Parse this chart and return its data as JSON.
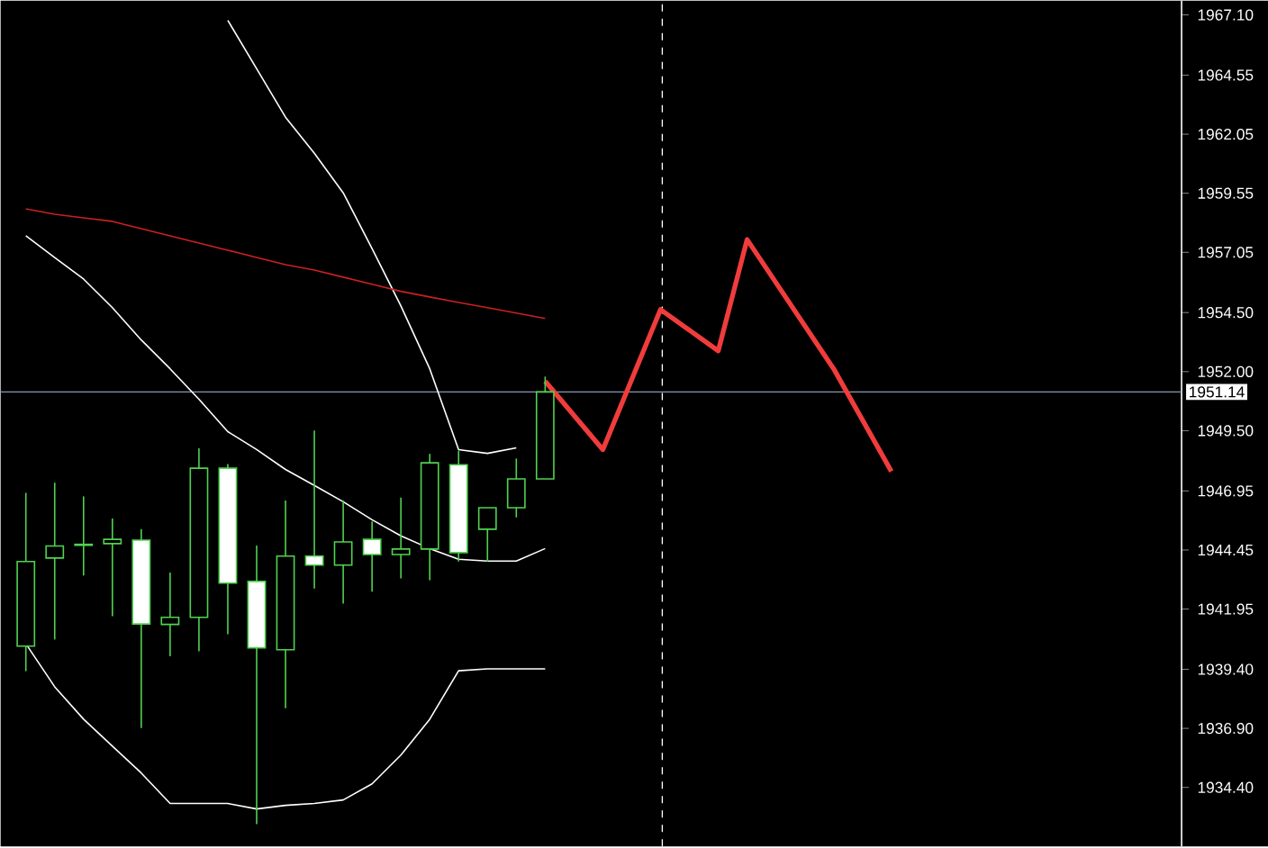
{
  "chart_data": {
    "type": "candlestick",
    "categories": [
      null,
      null,
      null,
      null,
      null,
      null,
      null,
      null,
      null,
      null,
      null,
      null,
      null,
      null,
      null,
      null,
      null,
      null,
      null,
      null,
      null,
      null,
      null,
      null,
      null,
      null,
      null,
      null,
      null,
      null,
      null,
      null,
      null,
      null,
      null,
      null,
      null,
      null,
      null,
      null,
      null
    ],
    "ohlc": [
      [
        1940.38,
        1946.87,
        1939.32,
        1943.96
      ],
      [
        1944.11,
        1947.3,
        1940.66,
        1944.62
      ],
      [
        1944.65,
        1946.72,
        1943.37,
        1944.69
      ],
      [
        1944.72,
        1945.78,
        1941.65,
        1944.9
      ],
      [
        1944.87,
        1945.33,
        1936.91,
        1941.32
      ],
      [
        1941.3,
        1943.5,
        1939.95,
        1941.6
      ],
      [
        1941.6,
        1948.75,
        1940.16,
        1947.91
      ],
      [
        1947.91,
        1948.09,
        1940.89,
        1943.05
      ],
      [
        1943.12,
        1944.64,
        1932.85,
        1940.31
      ],
      [
        1940.23,
        1946.54,
        1937.75,
        1944.19
      ],
      [
        1944.19,
        1949.51,
        1942.82,
        1943.81
      ],
      [
        1943.81,
        1946.54,
        1942.18,
        1944.79
      ],
      [
        1944.9,
        1945.66,
        1942.69,
        1944.26
      ],
      [
        1944.26,
        1946.67,
        1943.25,
        1944.49
      ],
      [
        1944.49,
        1948.52,
        1943.17,
        1948.14
      ],
      [
        1948.06,
        1948.65,
        1943.96,
        1944.34
      ],
      [
        1945.33,
        1946.24,
        1943.96,
        1946.24
      ],
      [
        1946.24,
        1948.32,
        1945.83,
        1947.46
      ],
      [
        1947.46,
        1951.79,
        1947.46,
        1951.14
      ],
      null,
      null,
      null,
      null,
      null,
      null,
      null,
      null,
      null,
      null,
      null,
      null,
      null,
      null,
      null,
      null,
      null,
      null,
      null,
      null,
      null,
      null
    ],
    "series": [
      {
        "type": "line",
        "color": "#ffffff",
        "values": [
          null,
          null,
          null,
          null,
          null,
          null,
          null,
          1966.87,
          1964.82,
          1962.77,
          1961.24,
          1959.57,
          1957.21,
          1954.78,
          1952.12,
          1948.7,
          1948.54,
          1948.77,
          null,
          null,
          null,
          null,
          null,
          null,
          null,
          null,
          null,
          null,
          null,
          null,
          null,
          null,
          null,
          null,
          null,
          null,
          null,
          null,
          null,
          null,
          null
        ]
      },
      {
        "type": "line",
        "color": "#ffffff",
        "values": [
          1957.75,
          1956.83,
          1955.92,
          1954.71,
          1953.34,
          1952.12,
          1950.83,
          1949.46,
          1948.7,
          1947.86,
          1947.18,
          1946.49,
          1945.73,
          1945.05,
          1944.51,
          1944.06,
          1943.98,
          1943.98,
          1944.51,
          null,
          null,
          null,
          null,
          null,
          null,
          null,
          null,
          null,
          null,
          null,
          null,
          null,
          null,
          null,
          null,
          null,
          null,
          null,
          null,
          null,
          null
        ]
      },
      {
        "type": "line",
        "color": "#ffffff",
        "values": [
          1940.48,
          1938.66,
          1937.29,
          1936.15,
          1935.01,
          1933.72,
          1933.72,
          1933.72,
          1933.49,
          1933.64,
          1933.72,
          1933.87,
          1934.55,
          1935.77,
          1937.29,
          1939.34,
          1939.42,
          1939.42,
          1939.42,
          null,
          null,
          null,
          null,
          null,
          null,
          null,
          null,
          null,
          null,
          null,
          null,
          null,
          null,
          null,
          null,
          null,
          null,
          null,
          null,
          null,
          null
        ]
      },
      {
        "type": "line",
        "color": "#cc2020",
        "values": [
          1958.89,
          1958.66,
          1958.51,
          1958.36,
          1958.05,
          1957.75,
          1957.44,
          1957.14,
          1956.83,
          1956.53,
          1956.3,
          1956.0,
          1955.7,
          1955.4,
          1955.16,
          1954.93,
          1954.71,
          1954.48,
          1954.25,
          null,
          null,
          null,
          null,
          null,
          null,
          null,
          null,
          null,
          null,
          null,
          null,
          null,
          null,
          null,
          null,
          null,
          null,
          null,
          null,
          null,
          null
        ]
      },
      {
        "type": "line",
        "color": "#f03c3c",
        "values": [
          null,
          null,
          null,
          null,
          null,
          null,
          null,
          null,
          null,
          null,
          null,
          null,
          null,
          null,
          null,
          null,
          null,
          null,
          1951.59,
          null,
          1948.7,
          null,
          1954.63,
          null,
          1952.88,
          1957.59,
          null,
          null,
          1952.12,
          null,
          1947.78,
          null,
          null,
          null,
          null,
          null,
          null,
          null,
          null,
          null,
          null
        ]
      }
    ],
    "ylim": [
      1931.9,
      1967.7
    ],
    "yticks": [
      {
        "value": 1934.4,
        "label": "1934.40"
      },
      {
        "value": 1936.9,
        "label": "1936.90"
      },
      {
        "value": 1939.4,
        "label": "1939.40"
      },
      {
        "value": 1941.95,
        "label": "1941.95"
      },
      {
        "value": 1944.45,
        "label": "1944.45"
      },
      {
        "value": 1946.95,
        "label": "1946.95"
      },
      {
        "value": 1949.5,
        "label": "1949.50"
      },
      {
        "value": 1952.0,
        "label": "1952.00"
      },
      {
        "value": 1954.5,
        "label": "1954.50"
      },
      {
        "value": 1957.05,
        "label": "1957.05"
      },
      {
        "value": 1959.55,
        "label": "1959.55"
      },
      {
        "value": 1962.05,
        "label": "1962.05"
      },
      {
        "value": 1964.55,
        "label": "1964.55"
      },
      {
        "value": 1967.1,
        "label": "1967.10"
      }
    ],
    "ref_lines": [
      {
        "axis": "y",
        "value": 1951.14,
        "label": "1951.14",
        "color": "#8c96b4"
      }
    ],
    "tick_labels": "y"
  }
}
